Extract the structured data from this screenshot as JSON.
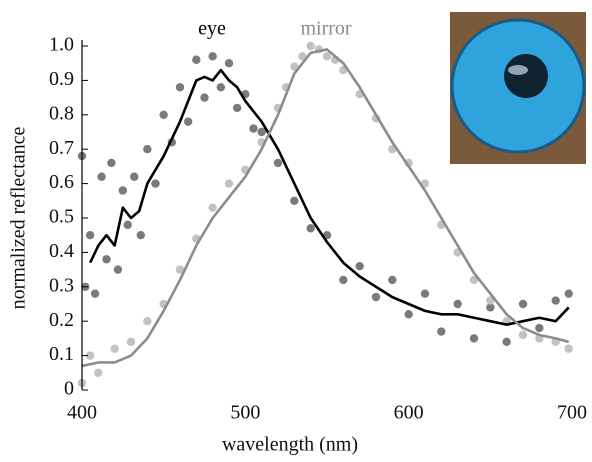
{
  "chart_data": {
    "type": "line",
    "xlabel": "wavelength (nm)",
    "ylabel": "normalized reflectance",
    "xlim": [
      400,
      700
    ],
    "xticks": [
      400,
      500,
      600,
      700
    ],
    "ylim": [
      0,
      1
    ],
    "yticks": [
      0,
      0.1,
      0.2,
      0.3,
      0.4,
      0.5,
      0.6,
      0.7,
      0.8,
      0.9,
      {
        "value": 1,
        "label": "1.0"
      }
    ],
    "series": [
      {
        "name": "eye",
        "color": "#000000",
        "point_color": "#7a7a7a",
        "x": [
          405,
          410,
          415,
          420,
          425,
          430,
          435,
          440,
          450,
          460,
          465,
          470,
          475,
          480,
          485,
          490,
          495,
          500,
          510,
          520,
          530,
          540,
          550,
          560,
          570,
          580,
          590,
          600,
          610,
          620,
          630,
          640,
          650,
          660,
          670,
          680,
          690,
          698
        ],
        "values": [
          0.37,
          0.42,
          0.45,
          0.42,
          0.53,
          0.5,
          0.52,
          0.6,
          0.68,
          0.78,
          0.84,
          0.9,
          0.91,
          0.9,
          0.93,
          0.9,
          0.88,
          0.84,
          0.78,
          0.7,
          0.6,
          0.5,
          0.43,
          0.37,
          0.33,
          0.3,
          0.27,
          0.25,
          0.23,
          0.22,
          0.22,
          0.21,
          0.2,
          0.19,
          0.2,
          0.21,
          0.2,
          0.24
        ],
        "points": {
          "x": [
            400,
            402,
            405,
            408,
            412,
            415,
            418,
            422,
            425,
            428,
            432,
            436,
            440,
            445,
            450,
            455,
            460,
            465,
            470,
            475,
            480,
            485,
            490,
            495,
            500,
            505,
            510,
            520,
            530,
            540,
            550,
            560,
            570,
            580,
            590,
            600,
            610,
            620,
            630,
            640,
            650,
            660,
            670,
            680,
            690,
            698
          ],
          "y": [
            0.68,
            0.3,
            0.45,
            0.28,
            0.62,
            0.38,
            0.66,
            0.35,
            0.58,
            0.48,
            0.62,
            0.45,
            0.7,
            0.6,
            0.8,
            0.72,
            0.88,
            0.78,
            0.96,
            0.85,
            0.97,
            0.88,
            0.95,
            0.82,
            0.86,
            0.76,
            0.75,
            0.66,
            0.55,
            0.47,
            0.45,
            0.32,
            0.36,
            0.27,
            0.32,
            0.22,
            0.28,
            0.17,
            0.25,
            0.15,
            0.24,
            0.14,
            0.25,
            0.18,
            0.26,
            0.28
          ]
        }
      },
      {
        "name": "mirror",
        "color": "#8c8c8c",
        "point_color": "#c2c2c2",
        "x": [
          400,
          410,
          420,
          430,
          440,
          450,
          460,
          470,
          480,
          490,
          500,
          510,
          520,
          530,
          540,
          550,
          560,
          570,
          580,
          590,
          600,
          610,
          620,
          630,
          640,
          650,
          660,
          670,
          680,
          690,
          698
        ],
        "values": [
          0.07,
          0.08,
          0.08,
          0.1,
          0.15,
          0.23,
          0.32,
          0.42,
          0.5,
          0.56,
          0.62,
          0.7,
          0.8,
          0.92,
          0.98,
          0.99,
          0.95,
          0.88,
          0.8,
          0.72,
          0.65,
          0.58,
          0.5,
          0.42,
          0.34,
          0.28,
          0.22,
          0.18,
          0.16,
          0.15,
          0.14
        ],
        "points": {
          "x": [
            400,
            405,
            410,
            420,
            430,
            440,
            450,
            460,
            470,
            480,
            490,
            500,
            510,
            520,
            525,
            530,
            535,
            540,
            545,
            550,
            555,
            560,
            570,
            580,
            590,
            600,
            610,
            620,
            630,
            640,
            650,
            660,
            670,
            680,
            690,
            698
          ],
          "y": [
            0.02,
            0.1,
            0.05,
            0.12,
            0.14,
            0.2,
            0.25,
            0.35,
            0.44,
            0.53,
            0.6,
            0.64,
            0.72,
            0.82,
            0.88,
            0.94,
            0.97,
            1.0,
            0.99,
            0.97,
            0.96,
            0.93,
            0.86,
            0.79,
            0.7,
            0.66,
            0.6,
            0.48,
            0.4,
            0.32,
            0.26,
            0.2,
            0.16,
            0.15,
            0.14,
            0.12
          ]
        }
      }
    ]
  }
}
